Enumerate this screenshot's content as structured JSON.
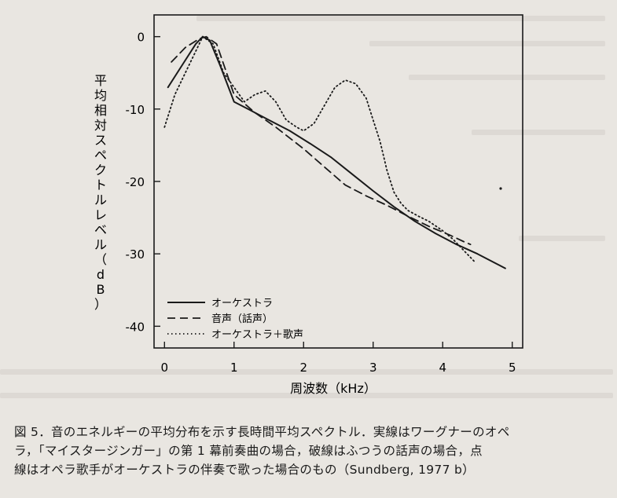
{
  "chart_data": {
    "type": "line",
    "xlabel": "周波数（kHz）",
    "ylabel": "平均相対スペクトルレベル（dB）",
    "x_ticks": [
      "0",
      "1",
      "2",
      "3",
      "4",
      "5"
    ],
    "y_ticks": [
      "0",
      "-10",
      "-20",
      "-30",
      "-40"
    ],
    "xlim": [
      -0.15,
      5.15
    ],
    "ylim": [
      -43,
      3
    ],
    "legend_position": "lower-left",
    "series": [
      {
        "name": "オーケストラ",
        "style": "solid",
        "x": [
          0.05,
          0.25,
          0.45,
          0.55,
          0.65,
          0.8,
          1.0,
          1.2,
          1.5,
          1.8,
          2.1,
          2.4,
          2.7,
          3.0,
          3.3,
          3.6,
          3.9,
          4.2,
          4.5,
          4.8,
          4.9
        ],
        "y": [
          -7,
          -4,
          -1,
          0,
          -0.5,
          -4,
          -9,
          -10,
          -11.5,
          -13,
          -14.8,
          -16.7,
          -19,
          -21.3,
          -23.5,
          -25.5,
          -27.2,
          -28.7,
          -30,
          -31.5,
          -32
        ]
      },
      {
        "name": "音声（話声）",
        "style": "dashed",
        "x": [
          0.1,
          0.3,
          0.5,
          0.6,
          0.75,
          1.0,
          1.3,
          1.6,
          2.0,
          2.3,
          2.6,
          2.9,
          3.2,
          3.5,
          3.8,
          4.1,
          4.3,
          4.4
        ],
        "y": [
          -3.5,
          -1.5,
          -0.3,
          0,
          -1,
          -8,
          -10.5,
          -12.5,
          -15.5,
          -18,
          -20.5,
          -22,
          -23.3,
          -24.8,
          -26.2,
          -27.4,
          -28.3,
          -28.7
        ]
      },
      {
        "name": "オーケストラ＋歌声",
        "style": "dotted",
        "x": [
          0.0,
          0.15,
          0.3,
          0.45,
          0.55,
          0.7,
          0.85,
          1.0,
          1.15,
          1.3,
          1.45,
          1.6,
          1.75,
          1.9,
          2.0,
          2.15,
          2.3,
          2.45,
          2.6,
          2.75,
          2.9,
          3.0,
          3.1,
          3.2,
          3.3,
          3.4,
          3.5,
          3.65,
          3.8,
          4.0,
          4.15,
          4.3,
          4.45
        ],
        "y": [
          -12.5,
          -8,
          -5,
          -2,
          0,
          -1,
          -5,
          -7,
          -9,
          -8,
          -7.5,
          -9,
          -11.5,
          -12.5,
          -13,
          -12,
          -9.5,
          -7,
          -6,
          -6.5,
          -8.5,
          -11.5,
          -14.5,
          -18.5,
          -21.5,
          -23,
          -24,
          -24.8,
          -25.5,
          -26.8,
          -28,
          -29.5,
          -31
        ]
      }
    ]
  },
  "caption_lines": [
    "図 5．音のエネルギーの平均分布を示す長時間平均スペクトル．実線はワーグナーのオペ",
    "ラ，「マイスタージンガー」の第 1 幕前奏曲の場合，破線はふつうの話声の場合，点",
    "線はオペラ歌手がオーケストラの伴奏で歌った場合のもの（Sundberg, 1977 b）"
  ]
}
